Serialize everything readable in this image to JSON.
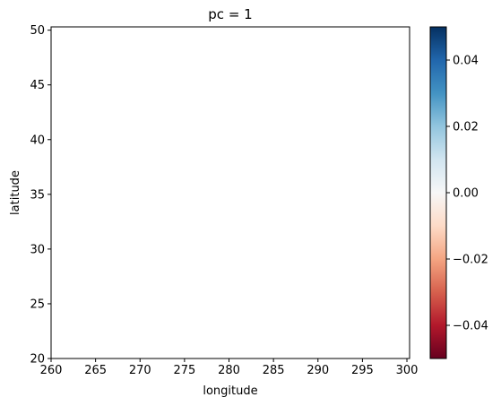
{
  "chart_data": {
    "type": "heatmap",
    "title": "pc = 1",
    "xlabel": "longitude",
    "ylabel": "latitude",
    "xlim": [
      260,
      300.3
    ],
    "ylim": [
      20,
      50.3
    ],
    "xticks": [
      "260",
      "265",
      "270",
      "275",
      "280",
      "285",
      "290",
      "295",
      "300"
    ],
    "yticks": [
      "20",
      "25",
      "30",
      "35",
      "40",
      "45",
      "50"
    ],
    "values": [],
    "colorbar": {
      "colormap": "RdBu",
      "range": [
        -0.05,
        0.05
      ],
      "ticks": [
        "−0.04",
        "−0.02",
        "0.00",
        "0.02",
        "0.04"
      ],
      "colors": [
        "#67001f",
        "#b2182b",
        "#d6604d",
        "#f4a582",
        "#fddbc7",
        "#f7f7f7",
        "#d1e5f0",
        "#92c5de",
        "#4393c3",
        "#2166ac",
        "#053061"
      ]
    },
    "grid": false
  }
}
